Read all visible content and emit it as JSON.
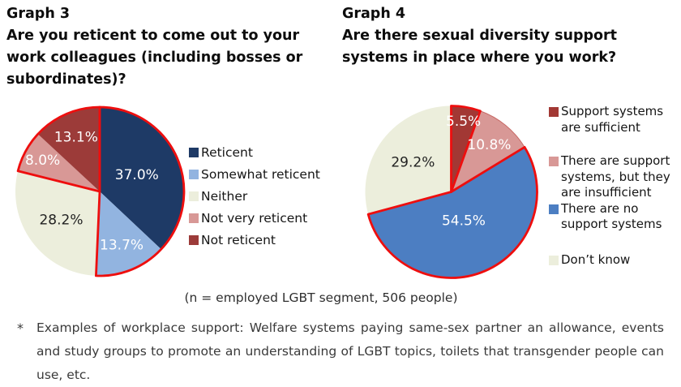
{
  "chart_data": [
    {
      "type": "pie",
      "heading": "Graph 3",
      "title": "Are you reticent to come out to your work colleagues (including bosses or subordinates)?",
      "start_angle_deg": 0,
      "direction": "clockwise",
      "radius_px": 104,
      "legend_position": "right",
      "slices": [
        {
          "label": "Reticent",
          "value": 37.0,
          "display": "37.0%",
          "color": "#1E3A66",
          "label_color": "#ffffff",
          "label_r": 0.48,
          "legend_lines": [
            "Reticent"
          ]
        },
        {
          "label": "Somewhat reticent",
          "value": 13.7,
          "display": "13.7%",
          "color": "#92B4E0",
          "label_color": "#ffffff",
          "label_r": 0.69,
          "legend_lines": [
            "Somewhat reticent"
          ]
        },
        {
          "label": "Neither",
          "value": 28.2,
          "display": "28.2%",
          "color": "#ECEEDC",
          "label_color": "#222222",
          "label_r": 0.57,
          "legend_lines": [
            "Neither"
          ]
        },
        {
          "label": "Not very reticent",
          "value": 8.0,
          "display": "8.0%",
          "color": "#D89896",
          "label_color": "#ffffff",
          "label_r": 0.77,
          "legend_lines": [
            "Not very reticent"
          ]
        },
        {
          "label": "Not reticent",
          "value": 13.1,
          "display": "13.1%",
          "color": "#9C3B39",
          "label_color": "#ffffff",
          "label_r": 0.7,
          "legend_lines": [
            "Not reticent"
          ]
        }
      ],
      "highlight_outline": {
        "color": "#EE0E0E",
        "width": 2.8,
        "groups": [
          [
            0,
            1
          ],
          [
            3,
            4
          ]
        ]
      }
    },
    {
      "type": "pie",
      "heading": "Graph 4",
      "title": "Are there sexual diversity support systems in place where you work?",
      "start_angle_deg": 0,
      "direction": "clockwise",
      "radius_px": 106,
      "legend_position": "right",
      "slices": [
        {
          "label": "Support systems are sufficient",
          "value": 5.5,
          "display": "5.5%",
          "color": "#A23834",
          "label_color": "#ffffff",
          "label_r": 0.83,
          "legend_lines": [
            "Support systems",
            "are sufficient"
          ]
        },
        {
          "label": "There are support systems, but they are insufficient",
          "value": 10.8,
          "display": "10.8%",
          "color": "#D89896",
          "label_color": "#ffffff",
          "label_r": 0.7,
          "stroke": "#C86A66",
          "legend_lines": [
            "There are support",
            "systems, but they",
            "are insufficient"
          ]
        },
        {
          "label": "There are no support systems",
          "value": 54.5,
          "display": "54.5%",
          "color": "#4C7EC2",
          "label_color": "#ffffff",
          "label_r": 0.37,
          "legend_lines": [
            "There are no",
            "support systems"
          ]
        },
        {
          "label": "Don’t know",
          "value": 29.2,
          "display": "29.2%",
          "color": "#ECEEDC",
          "label_color": "#222222",
          "label_r": 0.56,
          "legend_lines": [
            "Don’t know"
          ]
        }
      ],
      "highlight_outline": {
        "color": "#EE0E0E",
        "width": 2.8,
        "groups": [
          [
            0,
            0
          ],
          [
            2,
            2
          ]
        ]
      }
    }
  ],
  "caption": "(n = employed LGBT segment, 506 people)",
  "footnote": {
    "marker": "*",
    "text": "Examples of workplace support: Welfare systems paying same-sex partner an allowance, events and study groups to promote an understanding of LGBT topics, toilets that transgender people can use, etc."
  }
}
